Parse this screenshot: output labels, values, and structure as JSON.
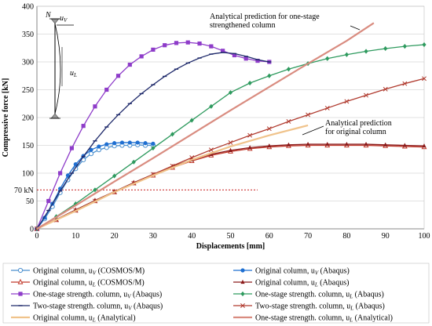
{
  "chart_data": {
    "type": "line",
    "xlabel": "Displacements [mm]",
    "ylabel": "Compressive force [kN]",
    "xlim": [
      0,
      100
    ],
    "ylim": [
      0,
      400
    ],
    "x_ticks": [
      "0",
      "10",
      "20",
      "30",
      "40",
      "50",
      "60",
      "70",
      "80",
      "90",
      "100"
    ],
    "y_ticks": [
      "0",
      "50",
      "100",
      "150",
      "200",
      "250",
      "300",
      "350",
      "400"
    ],
    "grid": "horizontal",
    "reference_line": {
      "label": "70 kN",
      "value": 70,
      "color": "#c00000"
    },
    "annotations": [
      {
        "text_lines": [
          "Analytical prediction for one-stage",
          "strengthened column"
        ],
        "x": 67,
        "y": 378
      },
      {
        "text_lines": [
          "Analytical prediction",
          "for original column"
        ],
        "x": 74,
        "y": 185
      }
    ],
    "inset": {
      "N": "N",
      "uV": "u",
      "uV_sub": "V",
      "uL": "u",
      "uL_sub": "L"
    },
    "series": [
      {
        "name": "Original column, u",
        "sub": "V",
        "suffix": " (COSMOS/M)",
        "color": "#4a8fce",
        "marker": "circle-open",
        "x": [
          0,
          2,
          4,
          6,
          8,
          10,
          12,
          14,
          16,
          18,
          20,
          22,
          24,
          26,
          28,
          30
        ],
        "y": [
          0,
          18,
          40,
          65,
          88,
          108,
          124,
          135,
          142,
          146,
          149,
          150,
          150,
          151,
          150,
          150
        ]
      },
      {
        "name": "Original column, u",
        "sub": "V",
        "suffix": " (Abaqus)",
        "color": "#1f6fd1",
        "marker": "circle",
        "x": [
          0,
          2,
          4,
          6,
          8,
          10,
          12,
          14,
          16,
          18,
          20,
          22,
          24,
          26,
          28,
          30
        ],
        "y": [
          0,
          20,
          45,
          72,
          96,
          116,
          131,
          142,
          148,
          152,
          154,
          155,
          155,
          155,
          154,
          153
        ]
      },
      {
        "name": "Original column, u",
        "sub": "L",
        "suffix": " (COSMOS/M)",
        "color": "#c0392b",
        "marker": "triangle-open",
        "x": [
          0,
          5,
          10,
          15,
          20,
          25,
          30,
          35,
          40,
          45,
          50,
          55,
          60,
          65,
          70,
          75,
          80,
          85,
          90,
          95,
          100
        ],
        "y": [
          0,
          16,
          33,
          50,
          66,
          82,
          96,
          110,
          122,
          132,
          139,
          144,
          147,
          149,
          150,
          150,
          150,
          150,
          149,
          148,
          147
        ]
      },
      {
        "name": "Original column, u",
        "sub": "L",
        "suffix": " (Abaqus)",
        "color": "#8b1a1a",
        "marker": "triangle",
        "x": [
          0,
          5,
          10,
          15,
          20,
          25,
          30,
          35,
          40,
          45,
          50,
          55,
          60,
          65,
          70,
          75,
          80,
          85,
          90,
          95,
          100
        ],
        "y": [
          0,
          17,
          34,
          51,
          67,
          83,
          98,
          112,
          124,
          134,
          141,
          146,
          149,
          151,
          152,
          152,
          152,
          152,
          151,
          150,
          149
        ]
      },
      {
        "name": "One-stage strength. column, u",
        "sub": "V",
        "suffix": " (Abaqus)",
        "color": "#8e3cc9",
        "marker": "square",
        "x": [
          0,
          3,
          6,
          9,
          12,
          15,
          18,
          21,
          24,
          27,
          30,
          33,
          36,
          39,
          42,
          45,
          48,
          51,
          54,
          57,
          60
        ],
        "y": [
          0,
          50,
          100,
          145,
          185,
          220,
          250,
          275,
          295,
          310,
          322,
          330,
          334,
          335,
          333,
          328,
          320,
          312,
          306,
          302,
          300
        ]
      },
      {
        "name": "One-stage strength. column, u",
        "sub": "L",
        "suffix": " (Abaqus)",
        "color": "#2e9a5e",
        "marker": "diamond",
        "x": [
          0,
          5,
          10,
          15,
          20,
          25,
          30,
          35,
          40,
          45,
          50,
          55,
          60,
          65,
          70,
          75,
          80,
          85,
          90,
          95,
          100
        ],
        "y": [
          0,
          22,
          45,
          70,
          95,
          120,
          145,
          170,
          195,
          220,
          245,
          262,
          275,
          287,
          297,
          306,
          313,
          319,
          324,
          328,
          331
        ]
      },
      {
        "name": "Two-stage strength. column, u",
        "sub": "V",
        "suffix": " (Abaqus)",
        "color": "#1f2a6b",
        "marker": "dash",
        "x": [
          0,
          3,
          6,
          9,
          12,
          15,
          18,
          21,
          24,
          27,
          30,
          33,
          36,
          39,
          42,
          45,
          48,
          51,
          54,
          57,
          60
        ],
        "y": [
          0,
          33,
          68,
          100,
          130,
          158,
          183,
          205,
          225,
          243,
          259,
          274,
          287,
          298,
          307,
          314,
          317,
          315,
          310,
          304,
          300
        ]
      },
      {
        "name": "Two-stage strength. column, u",
        "sub": "L",
        "suffix": " (Abaqus)",
        "color": "#b03a2e",
        "marker": "x",
        "x": [
          0,
          5,
          10,
          15,
          20,
          25,
          30,
          35,
          40,
          45,
          50,
          55,
          60,
          65,
          70,
          75,
          80,
          85,
          90,
          95,
          100
        ],
        "y": [
          0,
          16,
          33,
          50,
          66,
          82,
          98,
          113,
          128,
          142,
          155,
          168,
          180,
          193,
          205,
          217,
          229,
          240,
          251,
          261,
          270
        ]
      },
      {
        "name": "Original column, u",
        "sub": "L",
        "suffix": " (Analytical)",
        "color": "#f0c38b",
        "marker": "none",
        "x": [
          0,
          10,
          20,
          30,
          40,
          50,
          60,
          70
        ],
        "y": [
          0,
          32,
          66,
          96,
          124,
          148,
          168,
          186
        ]
      },
      {
        "name": "One-stage strength. column, u",
        "sub": "L",
        "suffix": " (Analytical)",
        "color": "#d98c80",
        "marker": "none",
        "x": [
          0,
          10,
          20,
          30,
          40,
          50,
          60,
          70,
          80,
          87
        ],
        "y": [
          0,
          42,
          85,
          127,
          170,
          213,
          255,
          297,
          338,
          370
        ]
      }
    ]
  }
}
